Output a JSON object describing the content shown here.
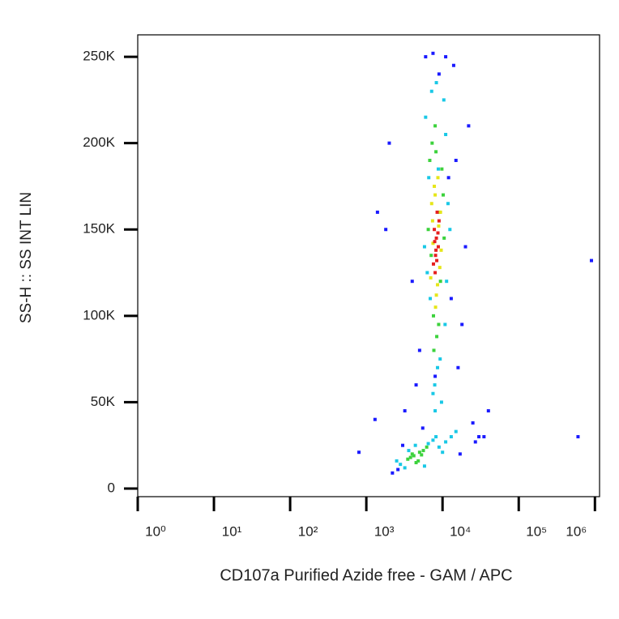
{
  "chart_data": {
    "type": "scatter",
    "xlabel": "CD107a Purified Azide free - GAM / APC",
    "ylabel": "SS-H :: SS INT LIN",
    "xscale": "log",
    "xlim": [
      1,
      1150000
    ],
    "xticks": [
      {
        "value": 1,
        "label": "10⁰"
      },
      {
        "value": 10,
        "label": "10¹"
      },
      {
        "value": 100,
        "label": "10²"
      },
      {
        "value": 1000,
        "label": "10³"
      },
      {
        "value": 10000,
        "label": "10⁴"
      },
      {
        "value": 100000,
        "label": "10⁵"
      },
      {
        "value": 1000000,
        "label": "10⁶"
      }
    ],
    "ylim": [
      -4700,
      262700
    ],
    "yticks": [
      0,
      {
        "value": 50000,
        "label": "50K"
      },
      {
        "value": 100000,
        "label": "100K"
      },
      {
        "value": 150000,
        "label": "150K"
      },
      {
        "value": 200000,
        "label": "200K"
      },
      {
        "value": 250000,
        "label": "250K"
      }
    ],
    "series": [
      {
        "color": "#1a1aff",
        "x": [
          2000,
          1800,
          30000,
          25000,
          22000,
          14000,
          16000,
          5000,
          4500,
          13000,
          3200,
          12000,
          20000,
          1300,
          2200,
          800,
          40000,
          900000,
          600000,
          18000,
          4000,
          3000,
          6000,
          11000,
          7500,
          9000,
          8000,
          1400,
          27000,
          15000,
          2600,
          17000,
          35000,
          5500
        ],
        "y": [
          200000,
          150000,
          30000,
          38000,
          210000,
          245000,
          70000,
          80000,
          60000,
          110000,
          45000,
          180000,
          140000,
          40000,
          9000,
          21000,
          45000,
          132000,
          30000,
          95000,
          120000,
          25000,
          250000,
          250000,
          252000,
          240000,
          65000,
          160000,
          27000,
          190000,
          11000,
          20000,
          30000,
          35000
        ]
      },
      {
        "color": "#19c8e6",
        "x": [
          6000,
          11000,
          6600,
          11800,
          7200,
          10400,
          8600,
          5800,
          12500,
          7900,
          9300,
          6900,
          10800,
          8300,
          7500,
          9700,
          8800,
          6300,
          11300,
          8000,
          2800,
          3200,
          6500,
          7500,
          9000,
          11000,
          13000,
          2500,
          4400,
          5800,
          3600,
          8200,
          15000,
          10000
        ],
        "y": [
          215000,
          205000,
          180000,
          165000,
          230000,
          225000,
          70000,
          140000,
          150000,
          60000,
          75000,
          110000,
          95000,
          235000,
          55000,
          50000,
          185000,
          125000,
          120000,
          45000,
          14000,
          12000,
          26000,
          28000,
          24000,
          27000,
          30000,
          16000,
          25000,
          13000,
          22000,
          30000,
          33000,
          21000
        ]
      },
      {
        "color": "#3cd23c",
        "x": [
          6800,
          9800,
          7300,
          10200,
          8000,
          6500,
          8900,
          7600,
          9400,
          8400,
          7100,
          10500,
          8200,
          7700,
          9100,
          3500,
          4200,
          5000,
          4500,
          3800,
          5600,
          6200,
          4800,
          4000,
          5300
        ],
        "y": [
          190000,
          185000,
          200000,
          170000,
          210000,
          150000,
          95000,
          100000,
          120000,
          88000,
          135000,
          145000,
          195000,
          80000,
          160000,
          17000,
          19000,
          21000,
          15000,
          18000,
          22000,
          24000,
          16000,
          20000,
          19500
        ]
      },
      {
        "color": "#e6e619",
        "x": [
          7200,
          9400,
          8000,
          8600,
          7000,
          9200,
          7500,
          8900,
          8300,
          7800,
          9600,
          8100,
          7400,
          8700
        ],
        "y": [
          165000,
          160000,
          170000,
          118000,
          122000,
          128000,
          142000,
          152000,
          112000,
          175000,
          138000,
          105000,
          155000,
          180000
        ]
      },
      {
        "color": "#e61e1e",
        "x": [
          7800,
          8300,
          8800,
          8100,
          9000,
          7600,
          8500,
          8000,
          8700,
          8200,
          7900,
          8400
        ],
        "y": [
          150000,
          145000,
          140000,
          135000,
          155000,
          130000,
          160000,
          125000,
          148000,
          138000,
          143000,
          132000
        ]
      }
    ]
  }
}
